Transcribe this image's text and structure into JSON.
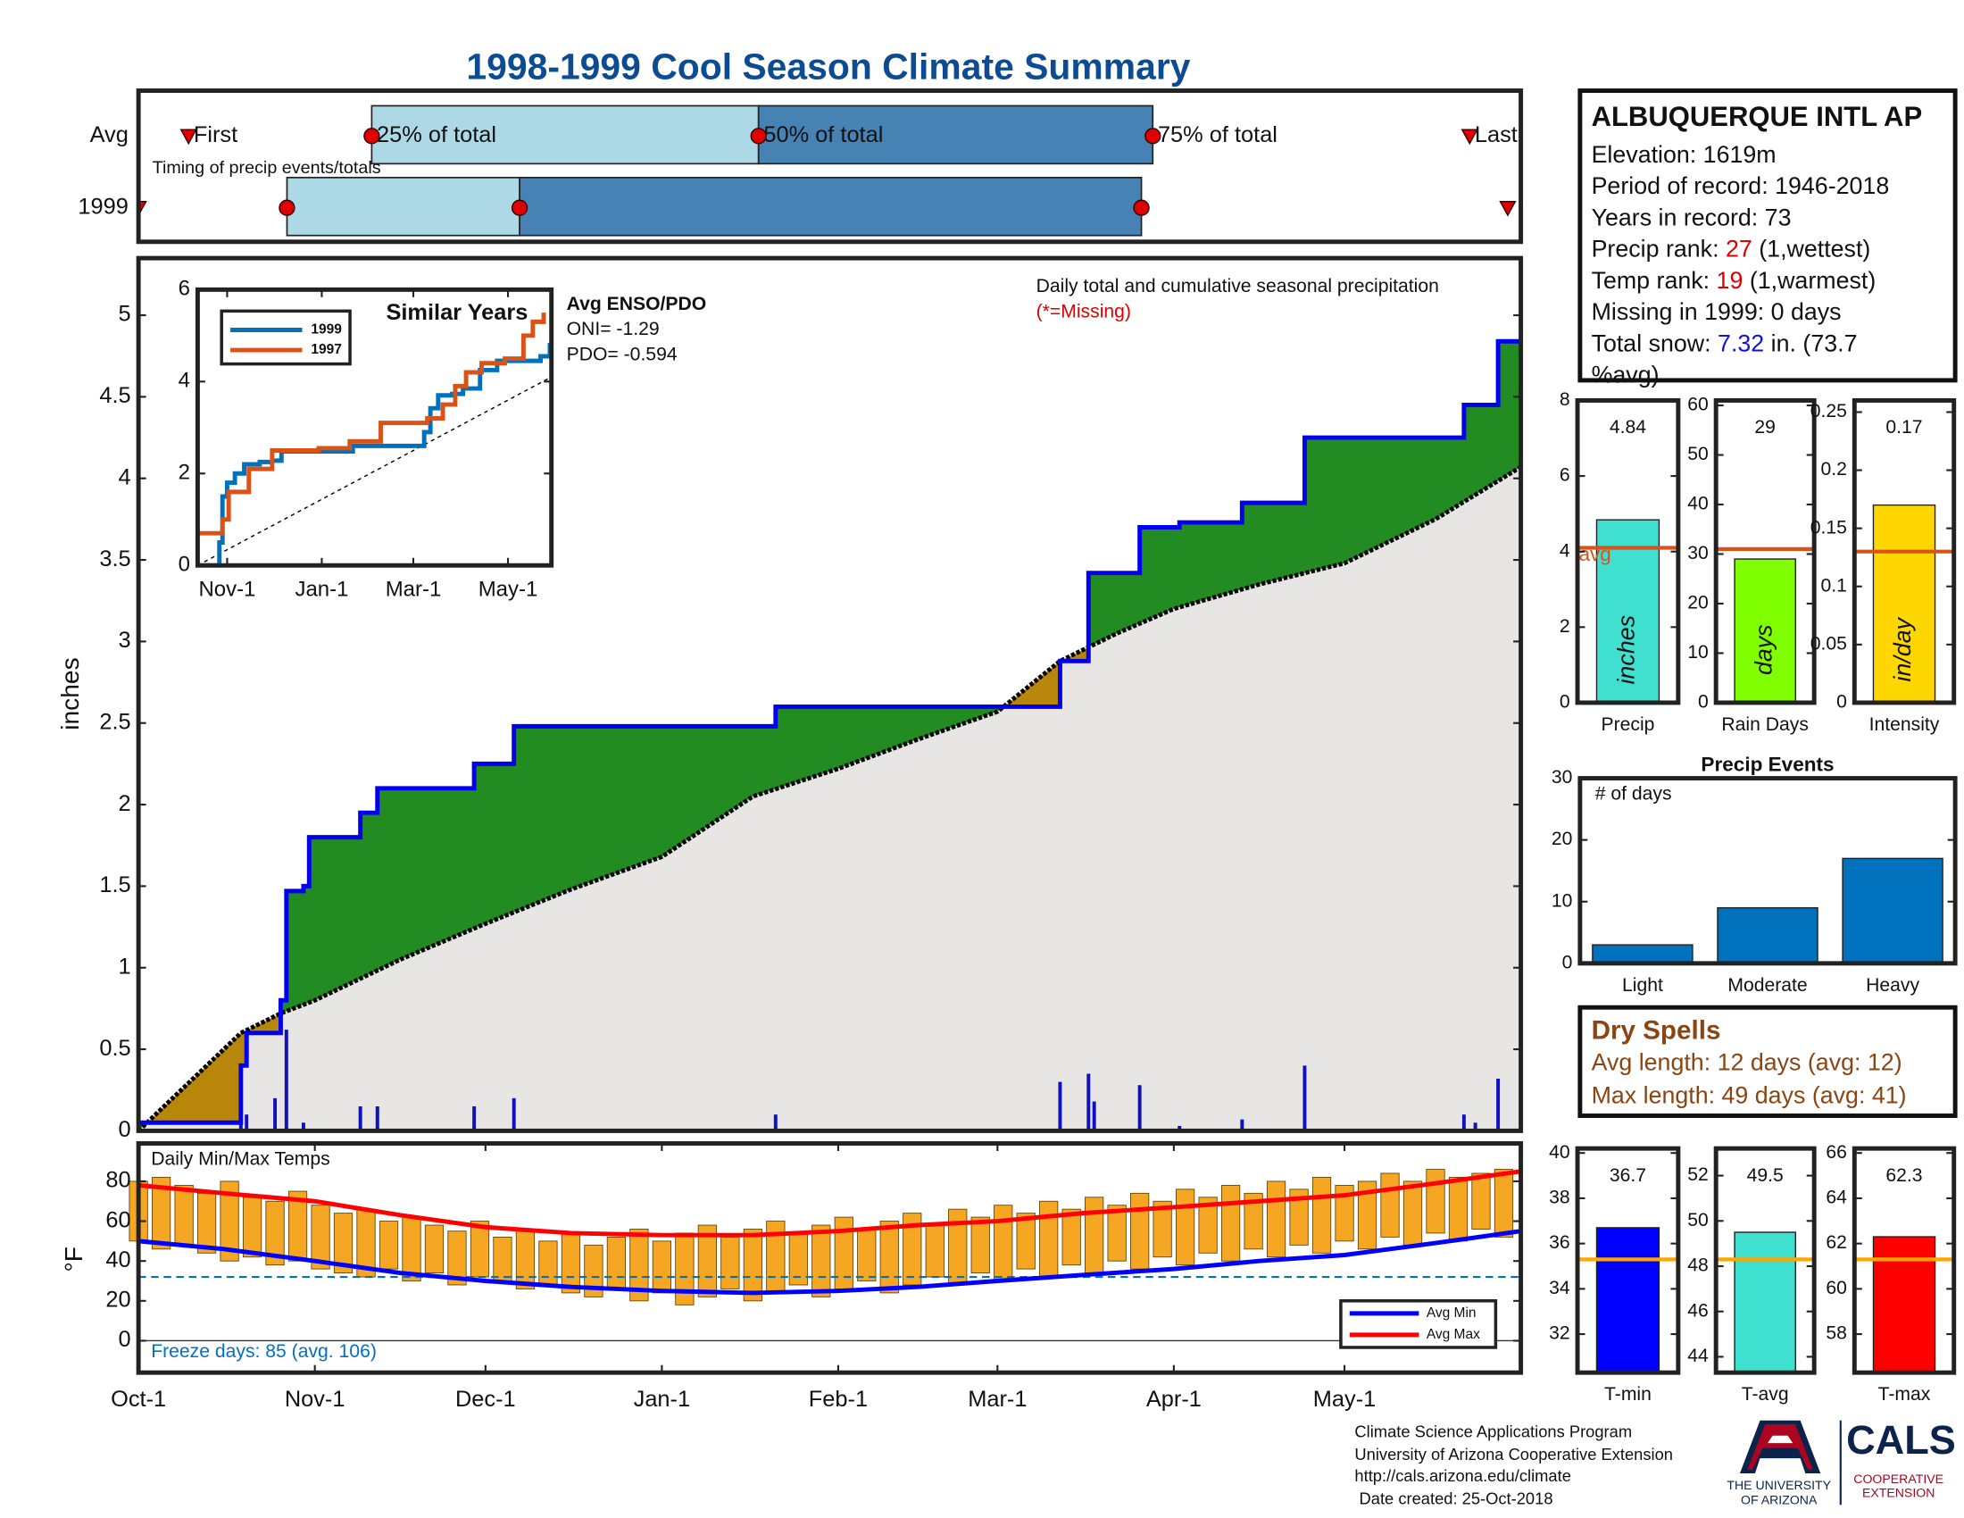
{
  "title": "1998-1999 Cool Season Climate Summary",
  "timing": {
    "note": "Timing of precip events/totals",
    "xlim": [
      0,
      243
    ],
    "light": "#add8e6",
    "dark": "#4682b4",
    "marker_color": "#e00000",
    "labels": {
      "first": "First",
      "p25": "25% of total",
      "p50": "50% of total",
      "p75": "75% of total",
      "last": "Last"
    },
    "rows": [
      {
        "label": "Avg",
        "first": 8.8,
        "p25": 41,
        "p50": 109,
        "p75": 178.3,
        "last": 234
      },
      {
        "label": "1999",
        "first": 0,
        "p25": 26.1,
        "p50": 67,
        "p75": 176.3,
        "last": 240.7
      }
    ]
  },
  "chart_data": [
    {
      "type": "cumulative",
      "title": "Daily total and cumulative seasonal precipitation",
      "subtitle": "(*=Missing)",
      "ylabel": "inches",
      "annotations": {
        "enso_title": "Avg ENSO/PDO",
        "oni": "ONI= -1.29",
        "pdo": "PDO= -0.594"
      },
      "xlim": [
        0,
        243
      ],
      "ylim": [
        0,
        5.35
      ],
      "yticks": [
        0,
        0.5,
        1,
        1.5,
        2,
        2.5,
        3,
        3.5,
        4,
        4.5,
        5
      ],
      "above_color": "#228b22",
      "below_color": "#b8860b",
      "fill_color": "#e8e6e4",
      "cumulative": {
        "color": "#0000ee",
        "x": [
          0,
          18,
          19,
          25,
          26,
          29,
          30,
          39,
          42,
          59,
          66,
          112,
          162,
          167,
          176,
          183,
          194,
          205,
          233,
          239
        ],
        "values": [
          0.05,
          0.4,
          0.6,
          0.8,
          1.47,
          1.5,
          1.8,
          1.95,
          2.1,
          2.25,
          2.48,
          2.6,
          2.88,
          3.42,
          3.7,
          3.73,
          3.85,
          4.25,
          4.45,
          4.84
        ]
      },
      "average": {
        "color": "#000000",
        "x": [
          0,
          9,
          18,
          25,
          31,
          46,
          61,
          76,
          92,
          108,
          123,
          137,
          151,
          162,
          172,
          182,
          197,
          212,
          228,
          243
        ],
        "values": [
          0,
          0.3,
          0.6,
          0.72,
          0.8,
          1.05,
          1.27,
          1.48,
          1.68,
          2.05,
          2.22,
          2.4,
          2.57,
          2.88,
          3.05,
          3.2,
          3.35,
          3.48,
          3.75,
          4.07
        ]
      },
      "daily": {
        "color": "#1010c0",
        "x": [
          0,
          18,
          19,
          24,
          26,
          29,
          39,
          42,
          59,
          66,
          112,
          162,
          167,
          168,
          176,
          183,
          194,
          205,
          233,
          235,
          239
        ],
        "values": [
          0.05,
          0.35,
          0.1,
          0.2,
          0.62,
          0.05,
          0.15,
          0.15,
          0.15,
          0.2,
          0.1,
          0.3,
          0.35,
          0.18,
          0.28,
          0.03,
          0.07,
          0.4,
          0.1,
          0.05,
          0.32
        ]
      }
    },
    {
      "type": "line",
      "title": "Similar Years",
      "xlim": [
        12,
        240
      ],
      "xticks": [
        {
          "value": 31,
          "label": "Nov-1"
        },
        {
          "value": 92,
          "label": "Jan-1"
        },
        {
          "value": 151,
          "label": "Mar-1"
        },
        {
          "value": 212,
          "label": "May-1"
        }
      ],
      "ylim": [
        0,
        6
      ],
      "yticks": [
        0,
        2,
        4,
        6
      ],
      "series": [
        {
          "name": "1999",
          "color": "#0072bd",
          "x": [
            12,
            22,
            26,
            28,
            31,
            36,
            42,
            52,
            60,
            66,
            112,
            150,
            158,
            162,
            167,
            176,
            183,
            194,
            205,
            233,
            239
          ],
          "values": [
            0,
            0,
            0.5,
            1.5,
            1.8,
            2.0,
            2.2,
            2.25,
            2.28,
            2.48,
            2.6,
            2.6,
            2.9,
            3.42,
            3.7,
            3.73,
            3.85,
            4.25,
            4.45,
            4.55,
            4.84
          ]
        },
        {
          "name": "1997",
          "color": "#d95319",
          "x": [
            12,
            25,
            28,
            32,
            45,
            60,
            90,
            110,
            130,
            160,
            170,
            178,
            185,
            195,
            210,
            222,
            228,
            235
          ],
          "values": [
            0.7,
            0.7,
            1.0,
            1.6,
            2.1,
            2.5,
            2.55,
            2.7,
            3.1,
            3.2,
            3.5,
            3.9,
            4.2,
            4.4,
            4.5,
            5.0,
            5.3,
            5.5
          ]
        }
      ],
      "average": {
        "color": "#000000",
        "x": [
          12,
          240
        ],
        "values": [
          0,
          4.1
        ]
      }
    },
    {
      "type": "range",
      "title": "Daily Min/Max Temps",
      "ylabel": "°F",
      "note": "Freeze days: 85 (avg. 106)",
      "xlim": [
        0,
        243
      ],
      "xticks": [
        {
          "value": 0,
          "label": "Oct-1"
        },
        {
          "value": 31,
          "label": "Nov-1"
        },
        {
          "value": 61,
          "label": "Dec-1"
        },
        {
          "value": 92,
          "label": "Jan-1"
        },
        {
          "value": 123,
          "label": "Feb-1"
        },
        {
          "value": 151,
          "label": "Mar-1"
        },
        {
          "value": 182,
          "label": "Apr-1"
        },
        {
          "value": 212,
          "label": "May-1"
        }
      ],
      "ylim": [
        -16,
        99
      ],
      "yticks": [
        0,
        20,
        40,
        60,
        80
      ],
      "freeze": {
        "value": 32,
        "color": "#0072bd"
      },
      "daily": {
        "color": "#f5a623",
        "x": [
          0,
          4,
          8,
          12,
          16,
          20,
          24,
          28,
          32,
          36,
          40,
          44,
          48,
          52,
          56,
          60,
          64,
          68,
          72,
          76,
          80,
          84,
          88,
          92,
          96,
          100,
          104,
          108,
          112,
          116,
          120,
          124,
          128,
          132,
          136,
          140,
          144,
          148,
          152,
          156,
          160,
          164,
          168,
          172,
          176,
          180,
          184,
          188,
          192,
          196,
          200,
          204,
          208,
          212,
          216,
          220,
          224,
          228,
          232,
          236,
          240
        ],
        "max": [
          80,
          82,
          78,
          74,
          80,
          72,
          70,
          75,
          68,
          64,
          66,
          60,
          62,
          58,
          55,
          60,
          52,
          56,
          50,
          54,
          48,
          52,
          56,
          50,
          54,
          58,
          52,
          56,
          60,
          54,
          58,
          62,
          56,
          60,
          64,
          58,
          66,
          62,
          68,
          64,
          70,
          66,
          72,
          68,
          74,
          70,
          76,
          72,
          78,
          74,
          80,
          76,
          82,
          78,
          80,
          84,
          80,
          86,
          82,
          84,
          86
        ],
        "min": [
          50,
          46,
          48,
          44,
          40,
          42,
          38,
          40,
          36,
          34,
          32,
          36,
          30,
          34,
          28,
          32,
          30,
          26,
          28,
          24,
          22,
          26,
          20,
          24,
          18,
          22,
          26,
          20,
          24,
          28,
          22,
          26,
          30,
          24,
          28,
          32,
          28,
          34,
          30,
          36,
          32,
          38,
          34,
          40,
          36,
          42,
          38,
          44,
          40,
          46,
          42,
          48,
          44,
          50,
          46,
          52,
          48,
          54,
          50,
          56,
          52
        ]
      },
      "series": [
        {
          "name": "Avg Min",
          "color": "#0000ff",
          "x": [
            0,
            15,
            31,
            46,
            61,
            76,
            92,
            108,
            123,
            137,
            151,
            166,
            182,
            197,
            212,
            228,
            243
          ],
          "values": [
            50,
            46,
            40,
            34,
            30,
            27,
            25,
            24,
            25,
            27,
            30,
            33,
            36,
            40,
            43,
            49,
            55
          ]
        },
        {
          "name": "Avg Max",
          "color": "#ff0000",
          "x": [
            0,
            15,
            31,
            46,
            61,
            76,
            92,
            108,
            123,
            137,
            151,
            166,
            182,
            197,
            212,
            228,
            243
          ],
          "values": [
            78,
            74,
            70,
            63,
            57,
            54,
            53,
            53,
            55,
            58,
            60,
            64,
            67,
            70,
            73,
            79,
            85
          ]
        }
      ]
    },
    {
      "type": "bar",
      "categories": [
        "Precip"
      ],
      "values": [
        4.84
      ],
      "color": "#40e0d0",
      "unit": "inches",
      "average": 4.1,
      "average_label": "avg",
      "average_color": "#d95319",
      "ylim": [
        0,
        8
      ],
      "yticks": [
        0,
        2,
        4,
        6,
        8
      ]
    },
    {
      "type": "bar",
      "categories": [
        "Rain Days"
      ],
      "values": [
        29
      ],
      "color": "#7fff00",
      "unit": "days",
      "average": 31,
      "average_color": "#d95319",
      "ylim": [
        0,
        61
      ],
      "yticks": [
        0,
        10,
        20,
        30,
        40,
        50,
        60
      ]
    },
    {
      "type": "bar",
      "categories": [
        "Intensity"
      ],
      "values": [
        0.17
      ],
      "color": "#ffd700",
      "unit": "in/day",
      "average": 0.13,
      "average_color": "#d95319",
      "ylim": [
        0,
        0.26
      ],
      "yticks": [
        0,
        0.05,
        0.1,
        0.15,
        0.2,
        0.25
      ]
    },
    {
      "type": "bar",
      "title": "Precip Events",
      "note": "# of days",
      "categories": [
        "Light",
        "Moderate",
        "Heavy"
      ],
      "values": [
        3,
        9,
        17
      ],
      "color": "#0072bd",
      "ylim": [
        0,
        30
      ],
      "yticks": [
        0,
        10,
        20,
        30
      ]
    },
    {
      "type": "bar",
      "categories": [
        "T-min"
      ],
      "values": [
        36.7
      ],
      "color": "#0000ff",
      "average": 35.3,
      "average_color": "#ffa500",
      "ylim": [
        30.3,
        40.2
      ],
      "yticks": [
        32,
        34,
        36,
        38,
        40
      ]
    },
    {
      "type": "bar",
      "categories": [
        "T-avg"
      ],
      "values": [
        49.5
      ],
      "color": "#40e0d0",
      "average": 48.3,
      "average_color": "#ffa500",
      "ylim": [
        43.3,
        53.2
      ],
      "yticks": [
        44,
        46,
        48,
        50,
        52
      ]
    },
    {
      "type": "bar",
      "categories": [
        "T-max"
      ],
      "values": [
        62.3
      ],
      "color": "#ff0000",
      "average": 61.3,
      "average_color": "#ffa500",
      "ylim": [
        56.3,
        66.2
      ],
      "yticks": [
        58,
        60,
        62,
        64,
        66
      ]
    }
  ],
  "station": {
    "name": "ALBUQUERQUE INTL AP",
    "elevation": "Elevation: 1619m",
    "period": "Period of record: 1946-2018",
    "years": "Years in record: 73",
    "precip_rank": {
      "label": "Precip rank:",
      "value": 27,
      "note": "(1,wettest)"
    },
    "temp_rank": {
      "label": "Temp rank:",
      "value": 19,
      "note": "(1,warmest)"
    },
    "missing": "Missing in 1999: 0 days",
    "snow": {
      "label": "Total snow:",
      "value": 7.32,
      "note": "in. (73.7 %avg)"
    }
  },
  "dry_spells": {
    "title": "Dry Spells",
    "avg": "Avg length: 12 days (avg: 12)",
    "max": "Max length: 49 days (avg: 41)"
  },
  "footer": {
    "lines": [
      "Climate Science Applications Program",
      "University of Arizona Cooperative Extension",
      "http://cals.arizona.edu/climate",
      " Date created: 25-Oct-2018"
    ],
    "ua_1": "THE UNIVERSITY",
    "ua_2": "OF ARIZONA",
    "cals": "CALS",
    "coop_1": "COOPERATIVE",
    "coop_2": "EXTENSION"
  }
}
